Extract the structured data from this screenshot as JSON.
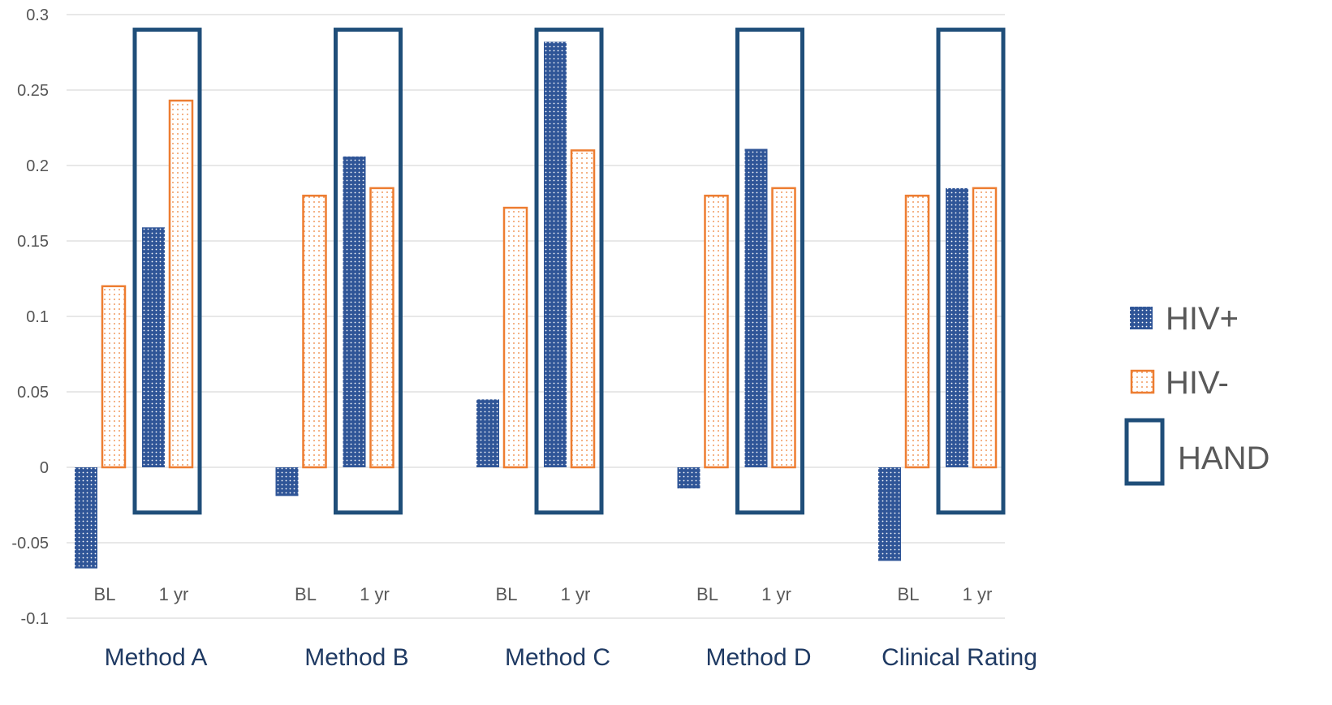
{
  "chart_data": {
    "type": "bar",
    "title": "",
    "xlabel": "",
    "ylabel": "",
    "ylim": [
      -0.1,
      0.3
    ],
    "yticks": [
      0.3,
      0.25,
      0.2,
      0.15,
      0.1,
      0.05,
      0,
      -0.05,
      -0.1
    ],
    "ytick_labels": [
      "0.3",
      "0.25",
      "0.2",
      "0.15",
      "0.1",
      "0.05",
      "0",
      "-0.05",
      "-0.1"
    ],
    "grid": true,
    "legend_position": "right",
    "groups": [
      "Method A",
      "Method B",
      "Method C",
      "Method D",
      "Clinical Rating"
    ],
    "timepoints": [
      "BL",
      "1 yr"
    ],
    "series": [
      {
        "name": "HIV+",
        "color": "#2f5597",
        "pattern": "dense-dots",
        "values": {
          "BL": [
            -0.067,
            -0.019,
            0.045,
            -0.014,
            -0.062
          ],
          "1 yr": [
            0.159,
            0.206,
            0.282,
            0.211,
            0.185
          ]
        }
      },
      {
        "name": "HIV-",
        "color": "#ed7d31",
        "pattern": "sparse-dots",
        "values": {
          "BL": [
            0.12,
            0.18,
            0.172,
            0.18,
            0.18
          ],
          "1 yr": [
            0.243,
            0.185,
            0.21,
            0.185,
            0.185
          ]
        }
      }
    ],
    "highlight": {
      "name": "HAND",
      "applies_to": "1 yr",
      "color": "#1f4e79"
    }
  }
}
